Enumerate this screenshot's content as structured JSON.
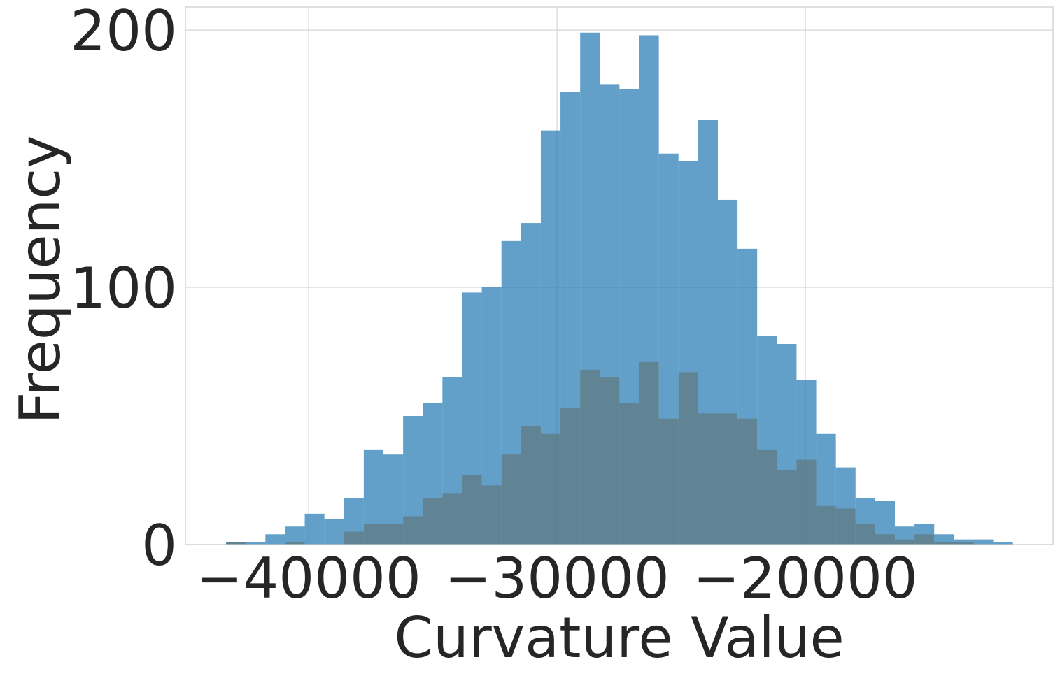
{
  "chart_data": {
    "type": "histogram",
    "xlabel": "Curvature Value",
    "ylabel": "Frequency",
    "bins": [
      -43324,
      -42532,
      -41740,
      -40948,
      -40156,
      -39364,
      -38572,
      -37780,
      -36988,
      -36196,
      -35404,
      -34612,
      -33820,
      -33028,
      -32236,
      -31444,
      -30652,
      -29860,
      -29068,
      -28276,
      -27484,
      -26692,
      -25900,
      -25108,
      -24316,
      -23524,
      -22732,
      -21940,
      -21148,
      -20356,
      -19564,
      -18772,
      -17980,
      -17188,
      -16396,
      -15604,
      -14812,
      -14020,
      -13228,
      -12436,
      -11644
    ],
    "series": [
      {
        "color": "#1f77b4",
        "alpha": 0.7,
        "values": [
          1,
          1,
          4,
          7,
          12,
          10,
          18,
          37,
          35,
          50,
          55,
          65,
          98,
          100,
          118,
          125,
          161,
          176,
          199,
          179,
          177,
          198,
          152,
          149,
          165,
          134,
          115,
          81,
          78,
          64,
          43,
          30,
          18,
          17,
          7,
          8,
          4,
          2,
          2,
          1
        ]
      },
      {
        "color": "#5f777e",
        "alpha": 0.7,
        "values": [
          1,
          0,
          0,
          1,
          0,
          0,
          5,
          8,
          8,
          11,
          18,
          20,
          27,
          23,
          35,
          46,
          43,
          53,
          68,
          65,
          55,
          71,
          49,
          67,
          51,
          51,
          49,
          37,
          29,
          33,
          15,
          14,
          8,
          4,
          2,
          4,
          1,
          1,
          0,
          0
        ]
      }
    ],
    "xlim": [
      -44960,
      -10030
    ],
    "ylim": [
      0,
      209
    ],
    "xticks": [
      {
        "value": -40000,
        "label": "−40000"
      },
      {
        "value": -30000,
        "label": "−30000"
      },
      {
        "value": -20000,
        "label": "−20000"
      }
    ],
    "yticks": [
      0,
      100,
      200
    ],
    "grid": true
  }
}
